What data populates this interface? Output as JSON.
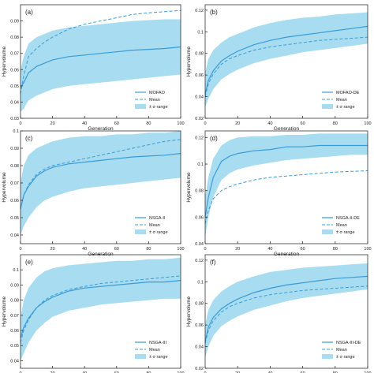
{
  "colors": {
    "band": "#a8dcf0",
    "line": "#3a9bd5",
    "axis": "#333333"
  },
  "chart_data": [
    {
      "type": "line",
      "panel": "(a)",
      "xlabel": "Generation",
      "ylabel": "Hypervolume",
      "xlim": [
        0,
        100
      ],
      "ylim": [
        0.03,
        0.1
      ],
      "xticks": [
        0,
        20,
        40,
        60,
        80,
        100
      ],
      "yticks": [
        0.03,
        0.04,
        0.05,
        0.06,
        0.07,
        0.08,
        0.09
      ],
      "legend": [
        "MOFAO",
        "Mean",
        "± σ range"
      ],
      "legend_position": "bottom-right",
      "x": [
        0,
        2,
        5,
        10,
        15,
        20,
        30,
        40,
        50,
        60,
        70,
        80,
        90,
        100
      ],
      "series_line": [
        0.049,
        0.052,
        0.058,
        0.062,
        0.064,
        0.066,
        0.068,
        0.069,
        0.07,
        0.071,
        0.072,
        0.0725,
        0.073,
        0.074
      ],
      "series_mean": [
        0.045,
        0.056,
        0.068,
        0.073,
        0.077,
        0.08,
        0.085,
        0.088,
        0.09,
        0.092,
        0.094,
        0.095,
        0.0957,
        0.0965
      ],
      "band_upper": [
        0.06,
        0.068,
        0.076,
        0.08,
        0.082,
        0.084,
        0.086,
        0.087,
        0.088,
        0.089,
        0.09,
        0.0905,
        0.091,
        0.091
      ],
      "band_lower": [
        0.034,
        0.036,
        0.041,
        0.044,
        0.046,
        0.048,
        0.05,
        0.051,
        0.052,
        0.053,
        0.054,
        0.055,
        0.056,
        0.057
      ]
    },
    {
      "type": "line",
      "panel": "(b)",
      "xlabel": "Generation",
      "ylabel": "Hypervolume",
      "xlim": [
        0,
        100
      ],
      "ylim": [
        0.02,
        0.125
      ],
      "xticks": [
        0,
        20,
        40,
        60,
        80,
        100
      ],
      "yticks": [
        0.02,
        0.04,
        0.06,
        0.08,
        0.1,
        0.12
      ],
      "legend": [
        "MOFAO-DE",
        "Mean",
        "± σ range"
      ],
      "legend_position": "bottom-right",
      "x": [
        0,
        2,
        5,
        10,
        15,
        20,
        30,
        40,
        50,
        60,
        70,
        80,
        90,
        100
      ],
      "series_line": [
        0.042,
        0.055,
        0.064,
        0.073,
        0.078,
        0.082,
        0.088,
        0.092,
        0.095,
        0.097,
        0.099,
        0.101,
        0.103,
        0.105
      ],
      "series_mean": [
        0.04,
        0.052,
        0.061,
        0.07,
        0.075,
        0.078,
        0.083,
        0.086,
        0.088,
        0.09,
        0.092,
        0.093,
        0.094,
        0.095
      ],
      "band_upper": [
        0.062,
        0.075,
        0.083,
        0.09,
        0.095,
        0.098,
        0.104,
        0.108,
        0.111,
        0.113,
        0.114,
        0.116,
        0.117,
        0.118
      ],
      "band_lower": [
        0.03,
        0.038,
        0.047,
        0.056,
        0.061,
        0.065,
        0.071,
        0.075,
        0.078,
        0.081,
        0.083,
        0.085,
        0.087,
        0.089
      ]
    },
    {
      "type": "line",
      "panel": "(c)",
      "xlabel": "Generation",
      "ylabel": "Hypervolume",
      "xlim": [
        0,
        100
      ],
      "ylim": [
        0.035,
        0.1
      ],
      "xticks": [
        0,
        20,
        40,
        60,
        80,
        100
      ],
      "yticks": [
        0.04,
        0.05,
        0.06,
        0.07,
        0.08,
        0.09,
        0.1
      ],
      "legend": [
        "NSGA-II",
        "Mean",
        "± σ range"
      ],
      "legend_position": "bottom-right",
      "x": [
        0,
        2,
        5,
        10,
        15,
        20,
        30,
        40,
        50,
        60,
        70,
        80,
        90,
        100
      ],
      "series_line": [
        0.055,
        0.063,
        0.068,
        0.074,
        0.077,
        0.079,
        0.081,
        0.082,
        0.083,
        0.084,
        0.085,
        0.0855,
        0.086,
        0.087
      ],
      "series_mean": [
        0.055,
        0.063,
        0.069,
        0.075,
        0.078,
        0.08,
        0.082,
        0.084,
        0.086,
        0.088,
        0.09,
        0.092,
        0.094,
        0.095
      ],
      "band_upper": [
        0.07,
        0.08,
        0.086,
        0.09,
        0.092,
        0.094,
        0.096,
        0.097,
        0.097,
        0.098,
        0.098,
        0.099,
        0.099,
        0.1
      ],
      "band_lower": [
        0.04,
        0.045,
        0.05,
        0.056,
        0.06,
        0.062,
        0.065,
        0.067,
        0.068,
        0.069,
        0.07,
        0.071,
        0.072,
        0.073
      ]
    },
    {
      "type": "line",
      "panel": "(d)",
      "xlabel": "Generation",
      "ylabel": "Hypervolume",
      "xlim": [
        0,
        100
      ],
      "ylim": [
        0.04,
        0.125
      ],
      "xticks": [
        0,
        20,
        40,
        60,
        80,
        100
      ],
      "yticks": [
        0.04,
        0.06,
        0.08,
        0.1,
        0.12
      ],
      "legend": [
        "NSGA-II-DE",
        "Mean",
        "± σ range"
      ],
      "legend_position": "bottom-right",
      "x": [
        0,
        2,
        5,
        10,
        15,
        20,
        30,
        40,
        50,
        60,
        70,
        80,
        90,
        100
      ],
      "series_line": [
        0.06,
        0.075,
        0.09,
        0.102,
        0.106,
        0.108,
        0.11,
        0.111,
        0.113,
        0.113,
        0.114,
        0.114,
        0.114,
        0.114
      ],
      "series_mean": [
        0.055,
        0.065,
        0.074,
        0.08,
        0.083,
        0.085,
        0.088,
        0.09,
        0.091,
        0.092,
        0.093,
        0.094,
        0.0945,
        0.095
      ],
      "band_upper": [
        0.075,
        0.09,
        0.104,
        0.114,
        0.118,
        0.12,
        0.121,
        0.121,
        0.122,
        0.122,
        0.123,
        0.123,
        0.123,
        0.123
      ],
      "band_lower": [
        0.045,
        0.06,
        0.075,
        0.088,
        0.093,
        0.096,
        0.099,
        0.101,
        0.103,
        0.104,
        0.105,
        0.106,
        0.107,
        0.107
      ]
    },
    {
      "type": "line",
      "panel": "(e)",
      "xlabel": "Generation",
      "ylabel": "Hypervolume",
      "xlim": [
        0,
        100
      ],
      "ylim": [
        0.035,
        0.11
      ],
      "xticks": [
        0,
        20,
        40,
        60,
        80,
        100
      ],
      "yticks": [
        0.04,
        0.05,
        0.06,
        0.07,
        0.08,
        0.09,
        0.1
      ],
      "legend": [
        "NSGA-III",
        "Mean",
        "± σ range"
      ],
      "legend_position": "bottom-right",
      "x": [
        0,
        2,
        5,
        10,
        15,
        20,
        30,
        40,
        50,
        60,
        70,
        80,
        90,
        100
      ],
      "series_line": [
        0.055,
        0.062,
        0.068,
        0.075,
        0.079,
        0.082,
        0.086,
        0.088,
        0.089,
        0.09,
        0.091,
        0.092,
        0.092,
        0.093
      ],
      "series_mean": [
        0.052,
        0.06,
        0.067,
        0.075,
        0.08,
        0.083,
        0.087,
        0.089,
        0.091,
        0.092,
        0.093,
        0.094,
        0.095,
        0.096
      ],
      "band_upper": [
        0.068,
        0.08,
        0.088,
        0.095,
        0.099,
        0.101,
        0.103,
        0.104,
        0.105,
        0.106,
        0.106,
        0.107,
        0.107,
        0.108
      ],
      "band_lower": [
        0.04,
        0.045,
        0.052,
        0.06,
        0.065,
        0.069,
        0.073,
        0.075,
        0.077,
        0.078,
        0.079,
        0.08,
        0.081,
        0.081
      ]
    },
    {
      "type": "line",
      "panel": "(f)",
      "xlabel": "Generation",
      "ylabel": "Hypervolume",
      "xlim": [
        0,
        100
      ],
      "ylim": [
        0.02,
        0.125
      ],
      "xticks": [
        0,
        20,
        40,
        60,
        80,
        100
      ],
      "yticks": [
        0.02,
        0.04,
        0.06,
        0.08,
        0.1,
        0.12
      ],
      "legend": [
        "NSGA-III-DE",
        "Mean",
        "± σ range"
      ],
      "legend_position": "bottom-right",
      "x": [
        0,
        2,
        5,
        10,
        15,
        20,
        30,
        40,
        50,
        60,
        70,
        80,
        90,
        100
      ],
      "series_line": [
        0.045,
        0.058,
        0.067,
        0.075,
        0.08,
        0.084,
        0.09,
        0.094,
        0.097,
        0.099,
        0.101,
        0.103,
        0.104,
        0.105
      ],
      "series_mean": [
        0.043,
        0.055,
        0.064,
        0.072,
        0.077,
        0.08,
        0.085,
        0.088,
        0.09,
        0.092,
        0.093,
        0.094,
        0.095,
        0.096
      ],
      "band_upper": [
        0.06,
        0.074,
        0.083,
        0.091,
        0.096,
        0.1,
        0.105,
        0.109,
        0.111,
        0.113,
        0.114,
        0.115,
        0.116,
        0.117
      ],
      "band_lower": [
        0.03,
        0.04,
        0.05,
        0.059,
        0.064,
        0.068,
        0.074,
        0.078,
        0.082,
        0.085,
        0.087,
        0.089,
        0.091,
        0.093
      ]
    }
  ]
}
